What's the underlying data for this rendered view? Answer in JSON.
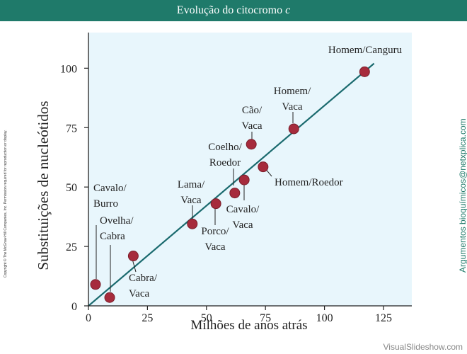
{
  "header": {
    "title_main": "Evolução do citocromo ",
    "title_italic": "c"
  },
  "side_texts": {
    "copyright": "Copyright © The McGraw-Hill Companies, Inc. Permission required for reproduction or display.",
    "brand": "Argumentos bioquímicos@netxplica.com",
    "watermark": "VisualSlideshow.com"
  },
  "colors": {
    "plot_background": "#e8f6fc",
    "point": "#a62b3c",
    "line": "#1a6a6e",
    "title_bar": "#1f7a6a"
  },
  "chart_data": {
    "type": "scatter",
    "title": "Evolução do citocromo c",
    "xlabel": "Milhões de anos atrás",
    "ylabel": "Substituições de nucleótidos",
    "xlim": [
      0,
      137
    ],
    "ylim": [
      0,
      115
    ],
    "xticks": [
      0,
      25,
      50,
      75,
      100,
      125
    ],
    "yticks": [
      0,
      25,
      50,
      75,
      100
    ],
    "grid": false,
    "fit_line": {
      "x": [
        0,
        121
      ],
      "y": [
        0,
        102
      ]
    },
    "points": [
      {
        "label_lines": [
          "Cavalo/",
          "Burro"
        ],
        "x": 3,
        "y": 9
      },
      {
        "label_lines": [
          "Ovelha/",
          "Cabra"
        ],
        "x": 9,
        "y": 3.5
      },
      {
        "label_lines": [
          "Cabra/",
          "Vaca"
        ],
        "x": 19,
        "y": 21
      },
      {
        "label_lines": [
          "Lama/",
          "Vaca"
        ],
        "x": 44,
        "y": 34.5
      },
      {
        "label_lines": [
          "Porco/",
          "Vaca"
        ],
        "x": 54,
        "y": 43
      },
      {
        "label_lines": [
          "Coelho/",
          "Roedor"
        ],
        "x": 62,
        "y": 47.5
      },
      {
        "label_lines": [
          "Cavalo/",
          "Vaca"
        ],
        "x": 66,
        "y": 53
      },
      {
        "label_lines": [
          "Homem/Roedor"
        ],
        "x": 74,
        "y": 58.5
      },
      {
        "label_lines": [
          "Cão/",
          "Vaca"
        ],
        "x": 69,
        "y": 68
      },
      {
        "label_lines": [
          "Homem/",
          "Vaca"
        ],
        "x": 87,
        "y": 74.5
      },
      {
        "label_lines": [
          "Homem/Canguru"
        ],
        "x": 117,
        "y": 98.5
      }
    ]
  }
}
